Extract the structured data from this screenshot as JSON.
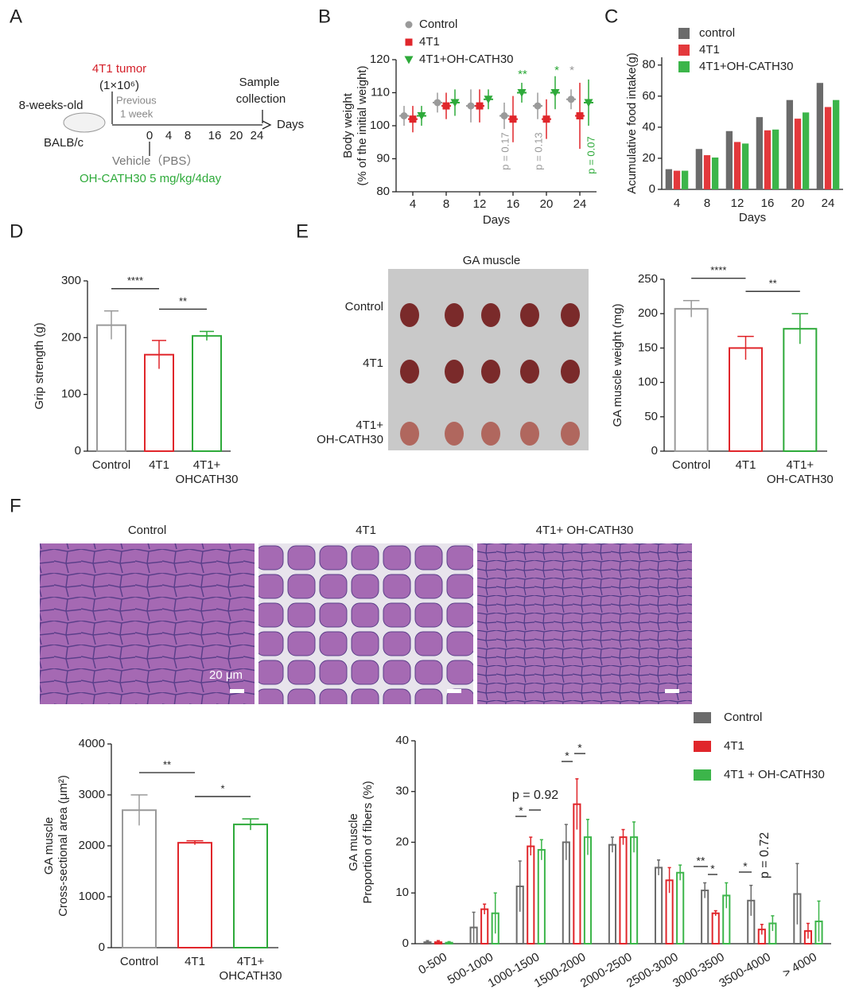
{
  "panel_labels": [
    "A",
    "B",
    "C",
    "D",
    "E",
    "F"
  ],
  "schematic": {
    "tumor": "4T1 tumor",
    "dose": "(1×10⁶)",
    "previous": [
      "Previous",
      "1 week"
    ],
    "mouse": [
      "8-weeks-old",
      "BALB/c"
    ],
    "sample": [
      "Sample",
      "collection"
    ],
    "axis": "Days",
    "timeline": [
      "0",
      "4",
      "8",
      "16",
      "20",
      "24"
    ],
    "vehicle": "Vehicle（PBS）",
    "treatment": "OH-CATH30 5 mg/kg/4day"
  },
  "images": {
    "muscle_photo": {
      "title": "GA muscle",
      "rows": [
        "Control",
        "4T1",
        "4T1+\nOH-CATH30"
      ]
    },
    "histology": {
      "titles": [
        "Control",
        "4T1",
        "4T1+ OH-CATH30"
      ],
      "scale": "20 μm"
    }
  },
  "chart_data": [
    {
      "type": "errorbar",
      "ylabel": "Body weight\n(% of the initial weight)",
      "xlabel": "Days",
      "x": [
        4,
        8,
        12,
        16,
        20,
        24
      ],
      "xlim": [
        2,
        26
      ],
      "xticks": [
        4,
        8,
        12,
        16,
        20,
        24
      ],
      "ylim": [
        80,
        120
      ],
      "yticks": [
        80,
        90,
        100,
        110,
        120
      ],
      "markers": [
        "circle",
        "square",
        "triangle"
      ],
      "series": [
        {
          "name": "Control",
          "color": "#9a9a9a",
          "values": [
            103,
            107,
            106,
            103,
            106,
            108
          ],
          "errors": [
            3,
            3,
            5,
            4,
            4,
            3
          ]
        },
        {
          "name": "4T1",
          "color": "#e0262b",
          "values": [
            102,
            106,
            106,
            102,
            102,
            103
          ],
          "errors": [
            4,
            4,
            5,
            7,
            6,
            10
          ]
        },
        {
          "name": "4T1+OH-CATH30",
          "color": "#2eaa3a",
          "values": [
            103,
            107,
            108,
            110,
            110,
            107
          ],
          "errors": [
            3,
            4,
            3,
            3,
            5,
            7
          ]
        }
      ],
      "annotations": [
        "p = 0.17",
        "p = 0.13",
        "p = 0.07",
        "**",
        "*",
        "*"
      ]
    },
    {
      "type": "bar",
      "bar_style": "filled",
      "ylabel": "Acumulative food intake(g)",
      "xlabel": "Days",
      "categories": [
        4,
        8,
        12,
        16,
        20,
        24
      ],
      "ylim": [
        0,
        85
      ],
      "yticks": [
        0,
        20,
        40,
        60,
        80
      ],
      "series": [
        {
          "name": "control",
          "color": "#6b6b6b",
          "values": [
            13,
            26,
            37.5,
            46.5,
            57.5,
            68.5
          ]
        },
        {
          "name": "4T1",
          "color": "#e3393c",
          "values": [
            12,
            22,
            30.5,
            38,
            45.5,
            53
          ]
        },
        {
          "name": "4T1+OH-CATH30",
          "color": "#3cb54a",
          "values": [
            12,
            20.5,
            29.5,
            38.5,
            49.5,
            57.5
          ]
        }
      ]
    },
    {
      "type": "bar",
      "bar_style": "outline",
      "ylabel": "Grip strength (g)",
      "categories": [
        "Control",
        "4T1",
        "4T1+\nOHCATH30"
      ],
      "values": [
        222,
        170,
        203
      ],
      "errors": [
        25,
        25,
        8
      ],
      "colors": [
        "#9a9a9a",
        "#e0262b",
        "#2eaa3a"
      ],
      "ylim": [
        0,
        300
      ],
      "yticks": [
        0,
        100,
        200,
        300
      ],
      "significance": [
        "****",
        "**"
      ]
    },
    {
      "type": "bar",
      "bar_style": "outline",
      "ylabel": "GA muscle weight (mg)",
      "categories": [
        "Control",
        "4T1",
        "4T1+\nOH-CATH30"
      ],
      "values": [
        207,
        150,
        178
      ],
      "errors": [
        12,
        17,
        22
      ],
      "colors": [
        "#9a9a9a",
        "#e0262b",
        "#2eaa3a"
      ],
      "ylim": [
        0,
        250
      ],
      "yticks": [
        0,
        50,
        100,
        150,
        200,
        250
      ],
      "significance": [
        "****",
        "**"
      ]
    },
    {
      "type": "bar",
      "bar_style": "outline",
      "ylabel": "GA muscle\nCross-sectional area (μm²)",
      "categories": [
        "Control",
        "4T1",
        "4T1+\nOHCATH30"
      ],
      "values": [
        2700,
        2060,
        2420
      ],
      "errors": [
        300,
        40,
        110
      ],
      "colors": [
        "#9a9a9a",
        "#e0262b",
        "#2eaa3a"
      ],
      "ylim": [
        0,
        4000
      ],
      "yticks": [
        0,
        1000,
        2000,
        3000,
        4000
      ],
      "significance": [
        "**",
        "*"
      ]
    },
    {
      "type": "bar",
      "bar_style": "outline",
      "ylabel": "GA muscle\nProportion of fibers (%)",
      "categories": [
        "0-500",
        "500-1000",
        "1000-1500",
        "1500-2000",
        "2000-2500",
        "2500-3000",
        "3000-3500",
        "3500-4000",
        "> 4000"
      ],
      "ylim": [
        0,
        40
      ],
      "yticks": [
        0,
        10,
        20,
        30,
        40
      ],
      "series": [
        {
          "name": "Control",
          "color": "#6b6b6b",
          "values": [
            0.3,
            3.2,
            11.3,
            20,
            19.5,
            15,
            10.5,
            8.5,
            9.8
          ],
          "errors": [
            0.3,
            3,
            5,
            3.5,
            1.5,
            1.5,
            1.5,
            3,
            6
          ]
        },
        {
          "name": "4T1",
          "color": "#e0262b",
          "values": [
            0.3,
            6.8,
            19.2,
            27.5,
            21,
            12.5,
            6,
            2.8,
            2.5
          ],
          "errors": [
            0.3,
            1,
            1.8,
            5,
            1.5,
            2.5,
            0.5,
            1,
            1.5
          ]
        },
        {
          "name": "4T1 + OH-CATH30",
          "color": "#3cb54a",
          "values": [
            0.2,
            6,
            18.5,
            21,
            21,
            14,
            9.5,
            4,
            4.4
          ],
          "errors": [
            0.2,
            4,
            2,
            3.5,
            3,
            1.5,
            2.5,
            1.5,
            4
          ]
        }
      ],
      "annotations": [
        "p = 0.92",
        "*",
        "*",
        "*",
        "**",
        "*",
        "*",
        "p = 0.72"
      ]
    }
  ]
}
